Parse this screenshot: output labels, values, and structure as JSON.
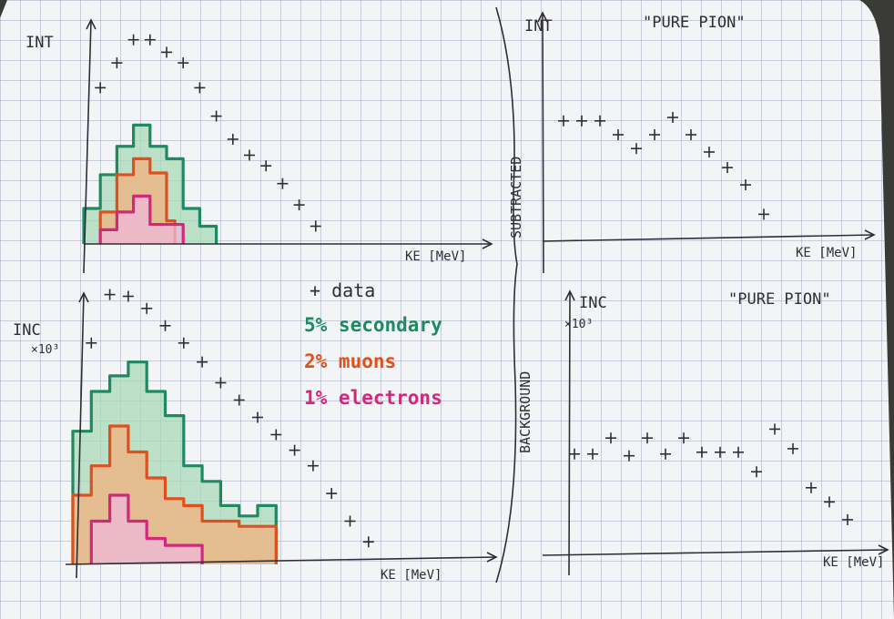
{
  "colors": {
    "paper": "#f3f4f6",
    "grid": "#9aa6bc",
    "ink": "#2e2e34",
    "secondary": "#1f8a62",
    "secondary_fill": "#a9d9b8",
    "muons": "#e0501c",
    "muons_fill": "#f2b27e",
    "electrons": "#d2287c",
    "electrons_fill": "#efb8d8"
  },
  "legend": {
    "data": "+  data",
    "secondary": "5%  secondary",
    "muons": "2%  muons",
    "electrons": "1%  electrons"
  },
  "brace_labels": {
    "top": "SUBTRACTED",
    "bottom": "BACKGROUND"
  },
  "chart_data": [
    {
      "type": "scatter",
      "position": "top-left",
      "title": "",
      "ylabel": "INT",
      "xlabel": "KE [MeV]",
      "grid": true,
      "series": [
        {
          "name": "data",
          "marker": "+",
          "x": [
            1,
            2,
            3,
            4,
            5,
            6,
            7,
            8,
            9,
            10,
            11,
            12,
            13,
            14
          ],
          "y": [
            8.8,
            10.2,
            11.5,
            11.5,
            10.8,
            10.2,
            8.8,
            7.2,
            5.9,
            5.0,
            4.4,
            3.4,
            2.2,
            1.0
          ]
        },
        {
          "name": "secondary",
          "type": "histogram",
          "edges": [
            0,
            1,
            2,
            3,
            4,
            5,
            6,
            7,
            8
          ],
          "values": [
            2.0,
            3.9,
            5.5,
            6.7,
            5.5,
            4.8,
            2.0,
            1.0
          ]
        },
        {
          "name": "muons",
          "type": "histogram",
          "edges": [
            1,
            2,
            3,
            4,
            5,
            5.5
          ],
          "values": [
            1.8,
            3.9,
            4.8,
            4.0,
            1.3
          ]
        },
        {
          "name": "electrons",
          "type": "histogram",
          "edges": [
            1,
            2,
            3,
            4,
            6
          ],
          "values": [
            0.8,
            1.8,
            2.7,
            1.1
          ]
        }
      ]
    },
    {
      "type": "scatter",
      "position": "bottom-left",
      "title": "",
      "ylabel": "INC",
      "ylabel_unit": "×10³",
      "xlabel": "KE [MeV]",
      "grid": true,
      "series": [
        {
          "name": "data",
          "marker": "+",
          "x": [
            1,
            2,
            3,
            4,
            5,
            6,
            7,
            8,
            9,
            10,
            11,
            12,
            13,
            14,
            15,
            16
          ],
          "y": [
            12.8,
            15.6,
            15.5,
            14.8,
            13.8,
            12.8,
            11.7,
            10.5,
            9.5,
            8.5,
            7.5,
            6.6,
            5.7,
            4.1,
            2.5,
            1.3
          ]
        },
        {
          "name": "secondary",
          "type": "histogram",
          "edges": [
            0,
            1,
            2,
            3,
            4,
            5,
            6,
            7,
            8,
            9,
            10,
            11
          ],
          "values": [
            7.7,
            10.0,
            10.9,
            11.7,
            10.0,
            8.6,
            5.7,
            4.8,
            3.4,
            2.8,
            3.4
          ]
        },
        {
          "name": "muons",
          "type": "histogram",
          "edges": [
            0,
            1,
            2,
            3,
            4,
            5,
            6,
            7,
            8,
            9,
            10,
            11
          ],
          "values": [
            4.0,
            5.7,
            8.0,
            6.5,
            5.0,
            3.8,
            3.4,
            2.5,
            2.5,
            2.2,
            2.2
          ]
        },
        {
          "name": "electrons",
          "type": "histogram",
          "edges": [
            1,
            2,
            3,
            4,
            5,
            6,
            7
          ],
          "values": [
            2.5,
            4.0,
            2.5,
            1.5,
            1.1,
            1.1
          ]
        }
      ]
    },
    {
      "type": "scatter",
      "position": "top-right",
      "title": "\"PURE PION\"",
      "ylabel": "INT",
      "xlabel": "KE [MeV]",
      "grid": true,
      "series": [
        {
          "name": "data",
          "marker": "+",
          "x": [
            1,
            2,
            3,
            4,
            5,
            6,
            7,
            8,
            9,
            10,
            11,
            12
          ],
          "y": [
            6.8,
            6.8,
            6.8,
            6.0,
            5.2,
            6.0,
            7.0,
            6.0,
            5.0,
            4.1,
            3.1,
            1.4
          ]
        }
      ]
    },
    {
      "type": "scatter",
      "position": "bottom-right",
      "title": "\"PURE PION\"",
      "ylabel": "INC",
      "ylabel_unit": "×10³",
      "xlabel": "KE [MeV]",
      "grid": true,
      "series": [
        {
          "name": "data",
          "marker": "+",
          "x": [
            1,
            2,
            3,
            4,
            5,
            6,
            7,
            8,
            9,
            10,
            11,
            12,
            13,
            14,
            15,
            16
          ],
          "y": [
            5.5,
            5.5,
            6.4,
            5.4,
            6.4,
            5.5,
            6.4,
            5.6,
            5.6,
            5.6,
            4.5,
            6.9,
            5.8,
            3.6,
            2.8,
            1.8
          ]
        }
      ]
    }
  ]
}
